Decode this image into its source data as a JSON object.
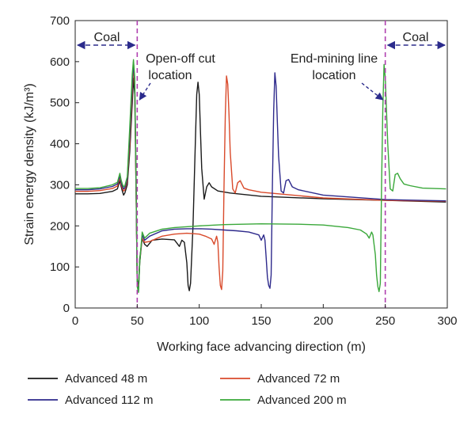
{
  "chart_data": {
    "type": "line",
    "title": "",
    "xlabel": "Working face advancing direction (m)",
    "ylabel": "Strain energy density (kJ/m³)",
    "xlim": [
      0,
      300
    ],
    "ylim": [
      0,
      700
    ],
    "xticks": [
      0,
      50,
      100,
      150,
      200,
      250,
      300
    ],
    "yticks": [
      0,
      100,
      200,
      300,
      400,
      500,
      600,
      700
    ],
    "grid": false,
    "legend_position": "bottom",
    "colors": {
      "Advanced 48 m": "#1a1a1a",
      "Advanced 72 m": "#d94a2b",
      "Advanced 112 m": "#2e2a8c",
      "Advanced 200 m": "#3aa83a",
      "marker_line": "#b040b0",
      "coal_arrow": "#2b2b8c"
    },
    "annotations": {
      "coal_left": "Coal",
      "coal_right": "Coal",
      "open_off_line1": "Open-off cut",
      "open_off_line2": "location",
      "end_mining_line1": "End-mining line",
      "end_mining_line2": "location"
    },
    "vertical_markers": [
      50,
      250
    ],
    "series": [
      {
        "name": "Advanced 48 m",
        "points": [
          [
            0,
            278
          ],
          [
            10,
            278
          ],
          [
            20,
            279
          ],
          [
            30,
            284
          ],
          [
            34,
            290
          ],
          [
            36,
            310
          ],
          [
            37,
            296
          ],
          [
            38,
            285
          ],
          [
            39,
            275
          ],
          [
            40,
            280
          ],
          [
            42,
            300
          ],
          [
            44,
            380
          ],
          [
            46,
            500
          ],
          [
            47,
            560
          ],
          [
            48,
            520
          ],
          [
            49,
            300
          ],
          [
            50,
            70
          ],
          [
            51,
            50
          ],
          [
            52,
            120
          ],
          [
            54,
            170
          ],
          [
            56,
            155
          ],
          [
            58,
            150
          ],
          [
            62,
            165
          ],
          [
            70,
            168
          ],
          [
            80,
            166
          ],
          [
            84,
            150
          ],
          [
            86,
            165
          ],
          [
            88,
            160
          ],
          [
            90,
            110
          ],
          [
            91,
            55
          ],
          [
            92,
            42
          ],
          [
            93,
            60
          ],
          [
            95,
            200
          ],
          [
            97,
            420
          ],
          [
            98,
            520
          ],
          [
            99,
            550
          ],
          [
            100,
            520
          ],
          [
            101,
            430
          ],
          [
            102,
            340
          ],
          [
            104,
            265
          ],
          [
            106,
            295
          ],
          [
            108,
            305
          ],
          [
            110,
            295
          ],
          [
            115,
            285
          ],
          [
            125,
            280
          ],
          [
            150,
            272
          ],
          [
            200,
            266
          ],
          [
            250,
            262
          ],
          [
            299,
            258
          ]
        ]
      },
      {
        "name": "Advanced 72 m",
        "points": [
          [
            0,
            284
          ],
          [
            10,
            284
          ],
          [
            20,
            286
          ],
          [
            30,
            291
          ],
          [
            34,
            297
          ],
          [
            36,
            318
          ],
          [
            37,
            302
          ],
          [
            38,
            292
          ],
          [
            39,
            285
          ],
          [
            40,
            288
          ],
          [
            42,
            310
          ],
          [
            44,
            400
          ],
          [
            46,
            530
          ],
          [
            47,
            590
          ],
          [
            48,
            540
          ],
          [
            49,
            300
          ],
          [
            50,
            60
          ],
          [
            51,
            45
          ],
          [
            52,
            110
          ],
          [
            54,
            170
          ],
          [
            56,
            160
          ],
          [
            60,
            162
          ],
          [
            70,
            175
          ],
          [
            80,
            180
          ],
          [
            90,
            182
          ],
          [
            100,
            180
          ],
          [
            105,
            175
          ],
          [
            110,
            168
          ],
          [
            112,
            155
          ],
          [
            114,
            175
          ],
          [
            115,
            160
          ],
          [
            116,
            100
          ],
          [
            117,
            55
          ],
          [
            118,
            45
          ],
          [
            119,
            90
          ],
          [
            120,
            300
          ],
          [
            121,
            470
          ],
          [
            122,
            565
          ],
          [
            123,
            545
          ],
          [
            124,
            470
          ],
          [
            125,
            380
          ],
          [
            127,
            290
          ],
          [
            129,
            280
          ],
          [
            131,
            305
          ],
          [
            133,
            310
          ],
          [
            136,
            292
          ],
          [
            140,
            288
          ],
          [
            150,
            282
          ],
          [
            200,
            268
          ],
          [
            250,
            262
          ],
          [
            299,
            260
          ]
        ]
      },
      {
        "name": "Advanced 112 m",
        "points": [
          [
            0,
            288
          ],
          [
            10,
            288
          ],
          [
            20,
            290
          ],
          [
            30,
            296
          ],
          [
            34,
            302
          ],
          [
            36,
            323
          ],
          [
            37,
            307
          ],
          [
            38,
            297
          ],
          [
            39,
            290
          ],
          [
            40,
            293
          ],
          [
            42,
            315
          ],
          [
            44,
            420
          ],
          [
            46,
            550
          ],
          [
            47,
            600
          ],
          [
            48,
            550
          ],
          [
            49,
            320
          ],
          [
            50,
            55
          ],
          [
            51,
            40
          ],
          [
            52,
            110
          ],
          [
            54,
            178
          ],
          [
            56,
            165
          ],
          [
            60,
            175
          ],
          [
            70,
            188
          ],
          [
            80,
            192
          ],
          [
            90,
            193
          ],
          [
            100,
            193
          ],
          [
            110,
            192
          ],
          [
            120,
            190
          ],
          [
            130,
            188
          ],
          [
            140,
            185
          ],
          [
            148,
            178
          ],
          [
            150,
            165
          ],
          [
            152,
            178
          ],
          [
            153,
            165
          ],
          [
            154,
            120
          ],
          [
            155,
            75
          ],
          [
            156,
            55
          ],
          [
            157,
            48
          ],
          [
            158,
            80
          ],
          [
            159,
            300
          ],
          [
            160,
            480
          ],
          [
            161,
            573
          ],
          [
            162,
            540
          ],
          [
            163,
            450
          ],
          [
            164,
            370
          ],
          [
            166,
            285
          ],
          [
            168,
            280
          ],
          [
            170,
            310
          ],
          [
            172,
            313
          ],
          [
            175,
            295
          ],
          [
            180,
            288
          ],
          [
            200,
            275
          ],
          [
            250,
            264
          ],
          [
            299,
            261
          ]
        ]
      },
      {
        "name": "Advanced 200 m",
        "points": [
          [
            0,
            291
          ],
          [
            10,
            291
          ],
          [
            20,
            293
          ],
          [
            30,
            300
          ],
          [
            34,
            306
          ],
          [
            36,
            328
          ],
          [
            37,
            312
          ],
          [
            38,
            302
          ],
          [
            39,
            295
          ],
          [
            40,
            298
          ],
          [
            42,
            320
          ],
          [
            44,
            440
          ],
          [
            46,
            570
          ],
          [
            47,
            605
          ],
          [
            48,
            560
          ],
          [
            49,
            330
          ],
          [
            50,
            52
          ],
          [
            51,
            38
          ],
          [
            52,
            110
          ],
          [
            54,
            185
          ],
          [
            56,
            170
          ],
          [
            60,
            182
          ],
          [
            70,
            192
          ],
          [
            80,
            196
          ],
          [
            100,
            200
          ],
          [
            120,
            203
          ],
          [
            150,
            205
          ],
          [
            180,
            204
          ],
          [
            200,
            202
          ],
          [
            220,
            196
          ],
          [
            230,
            190
          ],
          [
            235,
            180
          ],
          [
            237,
            170
          ],
          [
            239,
            185
          ],
          [
            240,
            178
          ],
          [
            242,
            130
          ],
          [
            243,
            80
          ],
          [
            244,
            52
          ],
          [
            245,
            40
          ],
          [
            246,
            60
          ],
          [
            247,
            300
          ],
          [
            248,
            480
          ],
          [
            249,
            593
          ],
          [
            250,
            560
          ],
          [
            251,
            480
          ],
          [
            252,
            400
          ],
          [
            254,
            290
          ],
          [
            256,
            285
          ],
          [
            258,
            325
          ],
          [
            260,
            328
          ],
          [
            262,
            315
          ],
          [
            265,
            302
          ],
          [
            270,
            298
          ],
          [
            280,
            292
          ],
          [
            299,
            290
          ]
        ]
      }
    ]
  }
}
